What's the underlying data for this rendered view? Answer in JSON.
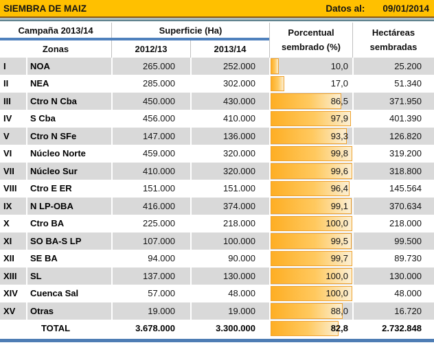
{
  "title_bar": {
    "title": "SIEMBRA DE MAIZ",
    "datos_label": "Datos al:",
    "date": "09/01/2014"
  },
  "header": {
    "campana": "Campaña 2013/14",
    "superficie": "Superficie (Ha)",
    "zonas": "Zonas",
    "col_2012": "2012/13",
    "col_2013": "2013/14",
    "porcentual": "Porcentual sembrado (%)",
    "hectareas": "Hectáreas sembradas"
  },
  "rows": [
    {
      "num": "I",
      "zona": "NOA",
      "s2012": "265.000",
      "s2013": "252.000",
      "pct": 10.0,
      "pct_label": "10,0",
      "ha": "25.200"
    },
    {
      "num": "II",
      "zona": "NEA",
      "s2012": "285.000",
      "s2013": "302.000",
      "pct": 17.0,
      "pct_label": "17,0",
      "ha": "51.340"
    },
    {
      "num": "III",
      "zona": "Ctro N Cba",
      "s2012": "450.000",
      "s2013": "430.000",
      "pct": 86.5,
      "pct_label": "86,5",
      "ha": "371.950"
    },
    {
      "num": "IV",
      "zona": "S Cba",
      "s2012": "456.000",
      "s2013": "410.000",
      "pct": 97.9,
      "pct_label": "97,9",
      "ha": "401.390"
    },
    {
      "num": "V",
      "zona": "Ctro N SFe",
      "s2012": "147.000",
      "s2013": "136.000",
      "pct": 93.3,
      "pct_label": "93,3",
      "ha": "126.820"
    },
    {
      "num": "VI",
      "zona": "Núcleo Norte",
      "s2012": "459.000",
      "s2013": "320.000",
      "pct": 99.8,
      "pct_label": "99,8",
      "ha": "319.200"
    },
    {
      "num": "VII",
      "zona": "Núcleo Sur",
      "s2012": "410.000",
      "s2013": "320.000",
      "pct": 99.6,
      "pct_label": "99,6",
      "ha": "318.800"
    },
    {
      "num": "VIII",
      "zona": "Ctro E ER",
      "s2012": "151.000",
      "s2013": "151.000",
      "pct": 96.4,
      "pct_label": "96,4",
      "ha": "145.564"
    },
    {
      "num": "IX",
      "zona": "N LP-OBA",
      "s2012": "416.000",
      "s2013": "374.000",
      "pct": 99.1,
      "pct_label": "99,1",
      "ha": "370.634"
    },
    {
      "num": "X",
      "zona": "Ctro BA",
      "s2012": "225.000",
      "s2013": "218.000",
      "pct": 100.0,
      "pct_label": "100,0",
      "ha": "218.000"
    },
    {
      "num": "XI",
      "zona": "SO BA-S LP",
      "s2012": "107.000",
      "s2013": "100.000",
      "pct": 99.5,
      "pct_label": "99,5",
      "ha": "99.500"
    },
    {
      "num": "XII",
      "zona": "SE BA",
      "s2012": "94.000",
      "s2013": "90.000",
      "pct": 99.7,
      "pct_label": "99,7",
      "ha": "89.730"
    },
    {
      "num": "XIII",
      "zona": "SL",
      "s2012": "137.000",
      "s2013": "130.000",
      "pct": 100.0,
      "pct_label": "100,0",
      "ha": "130.000"
    },
    {
      "num": "XIV",
      "zona": "Cuenca Sal",
      "s2012": "57.000",
      "s2013": "48.000",
      "pct": 100.0,
      "pct_label": "100,0",
      "ha": "48.000"
    },
    {
      "num": "XV",
      "zona": "Otras",
      "s2012": "19.000",
      "s2013": "19.000",
      "pct": 88.0,
      "pct_label": "88,0",
      "ha": "16.720"
    }
  ],
  "total": {
    "label": "TOTAL",
    "s2012": "3.678.000",
    "s2013": "3.300.000",
    "pct": 82.8,
    "pct_label": "82,8",
    "ha": "2.732.848"
  },
  "colors": {
    "title_bg": "#FFC000",
    "accent_blue": "#4F81BD",
    "row_shade": "#D9D9D9",
    "bar_border": "#EFA12D",
    "bar_fill_start": "#FEAE24",
    "bar_fill_end": "#FBEFD4",
    "divider_band": "#AEBCC1",
    "divider_edge": "#5F828E"
  },
  "chart_data": {
    "type": "table",
    "title": "SIEMBRA DE MAIZ",
    "subtitle": "Datos al: 09/01/2014",
    "row_ids": [
      "I",
      "II",
      "III",
      "IV",
      "V",
      "VI",
      "VII",
      "VIII",
      "IX",
      "X",
      "XI",
      "XII",
      "XIII",
      "XIV",
      "XV"
    ],
    "categories": [
      "NOA",
      "NEA",
      "Ctro N Cba",
      "S Cba",
      "Ctro N SFe",
      "Núcleo Norte",
      "Núcleo Sur",
      "Ctro E ER",
      "N LP-OBA",
      "Ctro BA",
      "SO BA-S LP",
      "SE BA",
      "SL",
      "Cuenca Sal",
      "Otras"
    ],
    "series": [
      {
        "name": "Superficie (Ha) 2012/13",
        "values": [
          265000,
          285000,
          450000,
          456000,
          147000,
          459000,
          410000,
          151000,
          416000,
          225000,
          107000,
          94000,
          137000,
          57000,
          19000
        ]
      },
      {
        "name": "Superficie (Ha) 2013/14",
        "values": [
          252000,
          302000,
          430000,
          410000,
          136000,
          320000,
          320000,
          151000,
          374000,
          218000,
          100000,
          90000,
          130000,
          48000,
          19000
        ]
      },
      {
        "name": "Porcentual sembrado (%)",
        "values": [
          10.0,
          17.0,
          86.5,
          97.9,
          93.3,
          99.8,
          99.6,
          96.4,
          99.1,
          100.0,
          99.5,
          99.7,
          100.0,
          100.0,
          88.0
        ]
      },
      {
        "name": "Hectáreas sembradas",
        "values": [
          25200,
          51340,
          371950,
          401390,
          126820,
          319200,
          318800,
          145564,
          370634,
          218000,
          99500,
          89730,
          130000,
          48000,
          16720
        ]
      }
    ],
    "totals": {
      "superficie_2012_13": 3678000,
      "superficie_2013_14": 3300000,
      "porcentual_sembrado": 82.8,
      "hectareas_sembradas": 2732848
    },
    "bar_column": "Porcentual sembrado (%)",
    "bar_range": [
      0,
      100
    ],
    "legend_position": "none",
    "grid": false
  }
}
